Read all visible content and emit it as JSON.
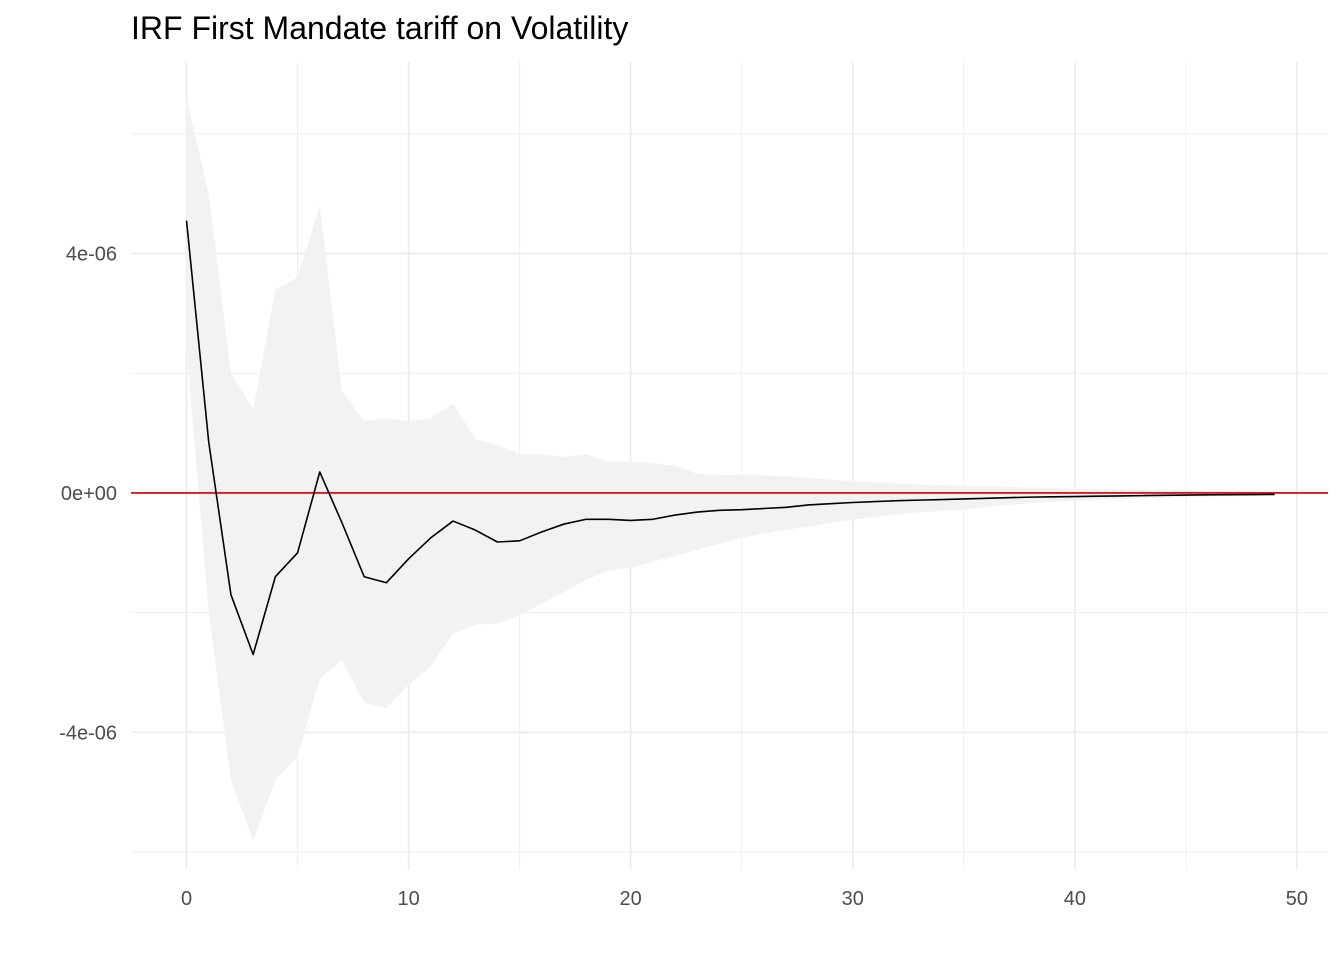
{
  "chart_data": {
    "type": "line",
    "title": "IRF First Mandate tariff on Volatility",
    "xlabel": "",
    "ylabel": "",
    "xlim": [
      -2.5,
      51.4
    ],
    "ylim": [
      -6.3e-06,
      7.2e-06
    ],
    "x_ticks": [
      0,
      10,
      20,
      30,
      40,
      50
    ],
    "x_tick_labels": [
      "0",
      "10",
      "20",
      "30",
      "40",
      "50"
    ],
    "y_ticks": [
      -4e-06,
      0,
      4e-06
    ],
    "y_tick_labels": [
      "-4e-06",
      "0e+00",
      "4e-06"
    ],
    "grid": true,
    "reference_line": {
      "y": 0,
      "color": "#cc0000"
    },
    "colors": {
      "line": "#000000",
      "band": "#f2f2f2",
      "grid": "#ebebeb",
      "zero_line": "#cc0000"
    },
    "series": [
      {
        "type": "line",
        "x": [
          0,
          1,
          2,
          3,
          4,
          5,
          6,
          7,
          8,
          9,
          10,
          11,
          12,
          13,
          14,
          15,
          16,
          17,
          18,
          19,
          20,
          21,
          22,
          23,
          24,
          25,
          26,
          27,
          28,
          29,
          30,
          31,
          32,
          33,
          34,
          35,
          36,
          37,
          38,
          39,
          40,
          41,
          42,
          43,
          44,
          45,
          46,
          47,
          48,
          49
        ],
        "values": [
          4.55e-06,
          8.5e-07,
          -1.7e-06,
          -2.7e-06,
          -1.4e-06,
          -1e-06,
          3.5e-07,
          -5e-07,
          -1.4e-06,
          -1.5e-06,
          -1.1e-06,
          -7.5e-07,
          -4.7e-07,
          -6.2e-07,
          -8.2e-07,
          -8e-07,
          -6.5e-07,
          -5.2e-07,
          -4.4e-07,
          -4.4e-07,
          -4.6e-07,
          -4.4e-07,
          -3.7e-07,
          -3.2e-07,
          -2.9e-07,
          -2.8e-07,
          -2.6e-07,
          -2.4e-07,
          -2e-07,
          -1.8e-07,
          -1.6e-07,
          -1.45e-07,
          -1.3e-07,
          -1.2e-07,
          -1.1e-07,
          -1e-07,
          -9e-08,
          -8e-08,
          -7e-08,
          -6.5e-08,
          -6e-08,
          -5.5e-08,
          -5e-08,
          -4.5e-08,
          -4e-08,
          -3.5e-08,
          -3.2e-08,
          -3e-08,
          -2.8e-08,
          -2.5e-08
        ]
      },
      {
        "type": "band",
        "x": [
          0,
          1,
          2,
          3,
          4,
          5,
          6,
          7,
          8,
          9,
          10,
          11,
          12,
          13,
          14,
          15,
          16,
          17,
          18,
          19,
          20,
          21,
          22,
          23,
          24,
          25,
          26,
          27,
          28,
          29,
          30,
          31,
          32,
          33,
          34,
          35,
          36,
          37,
          38,
          39,
          40,
          41,
          42,
          43,
          44,
          45,
          46,
          47,
          48,
          49
        ],
        "upper": [
          6.6e-06,
          5e-06,
          2e-06,
          1.4e-06,
          3.4e-06,
          3.6e-06,
          4.8e-06,
          1.7e-06,
          1.2e-06,
          1.25e-06,
          1.2e-06,
          1.25e-06,
          1.5e-06,
          9e-07,
          8e-07,
          6.5e-07,
          6.5e-07,
          6e-07,
          6.5e-07,
          5.2e-07,
          5.2e-07,
          5e-07,
          4.5e-07,
          3.2e-07,
          3e-07,
          3e-07,
          2.9e-07,
          2.8e-07,
          2.5e-07,
          2.2e-07,
          2e-07,
          1.8e-07,
          1.6e-07,
          1.4e-07,
          1.3e-07,
          1.2e-07,
          1.1e-07,
          1e-07,
          9e-08,
          8e-08,
          7e-08,
          6e-08,
          5.5e-08,
          5e-08,
          4.5e-08,
          4e-08,
          3.5e-08,
          3e-08,
          2.8e-08,
          2.5e-08
        ],
        "lower": [
          2.4e-06,
          -2e-06,
          -4.8e-06,
          -5.8e-06,
          -4.8e-06,
          -4.4e-06,
          -3.1e-06,
          -2.8e-06,
          -3.5e-06,
          -3.6e-06,
          -3.2e-06,
          -2.9e-06,
          -2.35e-06,
          -2.2e-06,
          -2.18e-06,
          -2.05e-06,
          -1.85e-06,
          -1.65e-06,
          -1.45e-06,
          -1.3e-06,
          -1.25e-06,
          -1.15e-06,
          -1.05e-06,
          -9.5e-07,
          -8.5e-07,
          -7.5e-07,
          -6.8e-07,
          -6.2e-07,
          -5.6e-07,
          -5e-07,
          -4.5e-07,
          -4e-07,
          -3.6e-07,
          -3.2e-07,
          -3e-07,
          -2.8e-07,
          -2.3e-07,
          -2e-07,
          -1.7e-07,
          -1.5e-07,
          -1.3e-07,
          -1.15e-07,
          -1e-07,
          -9e-08,
          -8e-08,
          -7e-08,
          -6e-08,
          -5.5e-08,
          -5e-08,
          -4.5e-08
        ]
      }
    ]
  }
}
